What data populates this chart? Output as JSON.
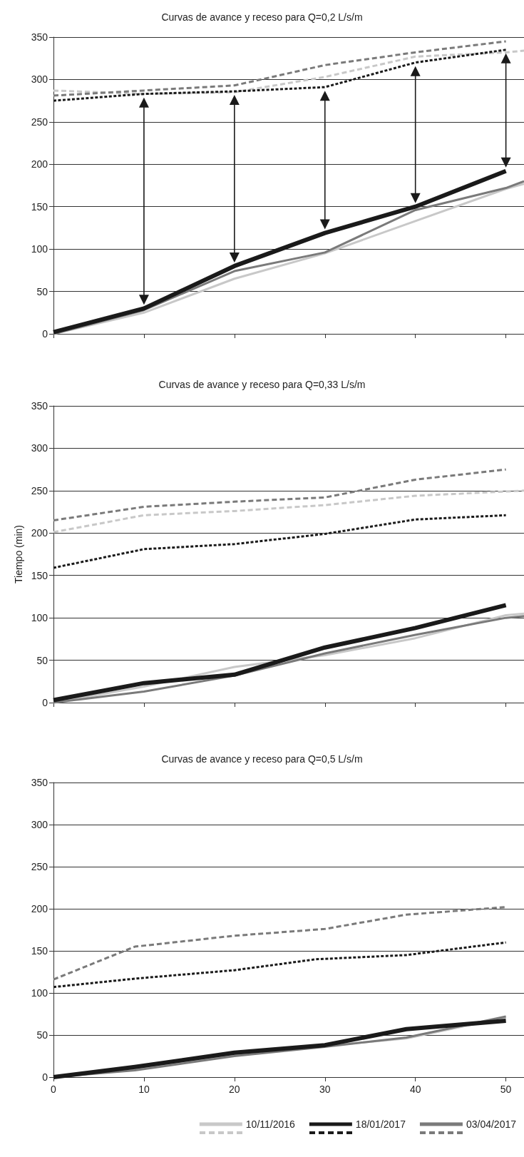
{
  "chart_data": [
    {
      "type": "line",
      "title": "Curvas de avance y receso para Q=0,2 L/s/m",
      "xlim": [
        0,
        52
      ],
      "xticks": [
        0,
        10,
        20,
        30,
        40,
        50
      ],
      "ylim": [
        0,
        350
      ],
      "yticks": [
        0,
        50,
        100,
        150,
        200,
        250,
        300,
        350
      ],
      "grid": "y",
      "tick_labels": "y",
      "marker": "none",
      "series": [
        {
          "color": "#c8c8c8",
          "x": [
            0,
            10,
            20,
            30,
            40,
            50,
            52
          ],
          "values": [
            0,
            25,
            65,
            95,
            133,
            171,
            177
          ]
        },
        {
          "color": "#1a1a1a",
          "x": [
            0,
            10,
            20,
            30,
            40,
            50
          ],
          "values": [
            2,
            30,
            80,
            119,
            150,
            192
          ]
        },
        {
          "color": "#7a7a7a",
          "x": [
            0,
            10,
            20,
            30,
            40,
            50,
            52
          ],
          "values": [
            0,
            28,
            74,
            96,
            146,
            172,
            180
          ]
        },
        {
          "color": "#c8c8c8",
          "line_style": "dashed",
          "x": [
            0,
            10,
            20,
            30,
            40,
            50,
            52
          ],
          "values": [
            287,
            283,
            285,
            303,
            327,
            332,
            334
          ]
        },
        {
          "color": "#1a1a1a",
          "line_style": "dashed",
          "x": [
            0,
            10,
            20,
            30,
            40,
            50
          ],
          "values": [
            275,
            283,
            286,
            291,
            320,
            335
          ]
        },
        {
          "color": "#7a7a7a",
          "line_style": "dashed",
          "x": [
            0,
            10,
            20,
            30,
            40,
            50
          ],
          "values": [
            281,
            287,
            293,
            317,
            332,
            345
          ]
        }
      ]
    },
    {
      "type": "line",
      "title": "Curvas de avance y receso para Q=0,33 L/s/m",
      "ylabel": "Tiempo (min)",
      "xlim": [
        0,
        52
      ],
      "xticks": [
        0,
        10,
        20,
        30,
        40,
        50
      ],
      "ylim": [
        0,
        350
      ],
      "yticks": [
        0,
        50,
        100,
        150,
        200,
        250,
        300,
        350
      ],
      "grid": "y",
      "tick_labels": "y",
      "marker": "none",
      "series": [
        {
          "color": "#c8c8c8",
          "x": [
            0,
            10,
            20,
            30,
            40,
            50,
            52
          ],
          "values": [
            0,
            19,
            42,
            56,
            76,
            103,
            105
          ]
        },
        {
          "color": "#1a1a1a",
          "x": [
            0,
            10,
            20,
            30,
            40,
            50
          ],
          "values": [
            3,
            23,
            33,
            65,
            88,
            115
          ]
        },
        {
          "color": "#7a7a7a",
          "x": [
            0,
            10,
            20,
            30,
            40,
            50,
            52
          ],
          "values": [
            0,
            13,
            32,
            58,
            80,
            100,
            102
          ]
        },
        {
          "color": "#c8c8c8",
          "line_style": "dashed",
          "x": [
            0,
            10,
            20,
            30,
            40,
            50,
            52
          ],
          "values": [
            201,
            221,
            226,
            233,
            244,
            249,
            250
          ]
        },
        {
          "color": "#1a1a1a",
          "line_style": "dashed",
          "x": [
            0,
            10,
            20,
            30,
            40,
            50
          ],
          "values": [
            159,
            181,
            187,
            199,
            216,
            221
          ]
        },
        {
          "color": "#7a7a7a",
          "line_style": "dashed",
          "x": [
            0,
            10,
            20,
            30,
            40,
            50
          ],
          "values": [
            215,
            231,
            237,
            242,
            263,
            275
          ]
        }
      ]
    },
    {
      "type": "line",
      "title": "Curvas de avance y receso para Q=0,5 L/s/m",
      "xlim": [
        0,
        52
      ],
      "xticks": [
        0,
        10,
        20,
        30,
        40,
        50
      ],
      "ylim": [
        0,
        350
      ],
      "yticks": [
        0,
        50,
        100,
        150,
        200,
        250,
        300,
        350
      ],
      "grid": "y",
      "marker": "none",
      "legend": "bottom right",
      "series": [
        {
          "name": "10/11/2016",
          "color": "#c8c8c8",
          "x": [
            0,
            9,
            20,
            30,
            39,
            50
          ],
          "values": [
            0,
            9,
            26,
            37,
            46,
            71
          ]
        },
        {
          "name": "18/01/2017",
          "color": "#1a1a1a",
          "x": [
            0,
            9,
            20,
            30,
            39,
            50
          ],
          "values": [
            0,
            12,
            29,
            38,
            57,
            67
          ]
        },
        {
          "name": "03/04/2017",
          "color": "#7a7a7a",
          "x": [
            0,
            9,
            20,
            30,
            39,
            50
          ],
          "values": [
            0,
            8,
            25,
            36,
            47,
            72
          ]
        },
        {
          "color": "#1a1a1a",
          "line_style": "dashed",
          "x": [
            0,
            9,
            20,
            29,
            39,
            50
          ],
          "values": [
            107,
            117,
            127,
            140,
            145,
            160
          ]
        },
        {
          "color": "#7a7a7a",
          "line_style": "dashed",
          "x": [
            0,
            9,
            20,
            30,
            39,
            50
          ],
          "values": [
            116,
            155,
            168,
            176,
            193,
            202
          ]
        }
      ]
    }
  ]
}
